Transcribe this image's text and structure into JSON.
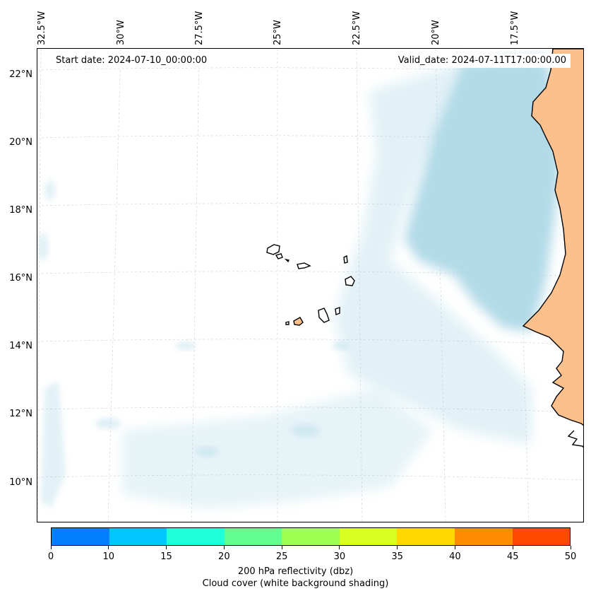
{
  "header": {
    "start_date": "Start date: 2024-07-10_00:00:00",
    "valid_date": "Valid_date: 2024-07-11T17:00:00.00"
  },
  "axes": {
    "longitude_labels": [
      "32.5°W",
      "30°W",
      "27.5°W",
      "25°W",
      "22.5°W",
      "20°W",
      "17.5°W"
    ],
    "latitude_labels": [
      "22°N",
      "20°N",
      "18°N",
      "16°N",
      "14°N",
      "12°N",
      "10°N"
    ]
  },
  "colorbar": {
    "ticks": [
      "0",
      "10",
      "15",
      "20",
      "25",
      "30",
      "35",
      "40",
      "45",
      "50"
    ],
    "colors": [
      "#0080ff",
      "#00c8ff",
      "#20ffd8",
      "#60ff90",
      "#a0ff50",
      "#d8ff20",
      "#ffd800",
      "#ff8c00",
      "#ff4800"
    ],
    "label_line1": "200 hPa reflectivity (dbz)",
    "label_line2": "Cloud cover (white background shading)"
  },
  "map_colors": {
    "cloud": "#add8e6",
    "land": "#fcc08c",
    "coast": "#000000",
    "grid": "#cccccc"
  }
}
